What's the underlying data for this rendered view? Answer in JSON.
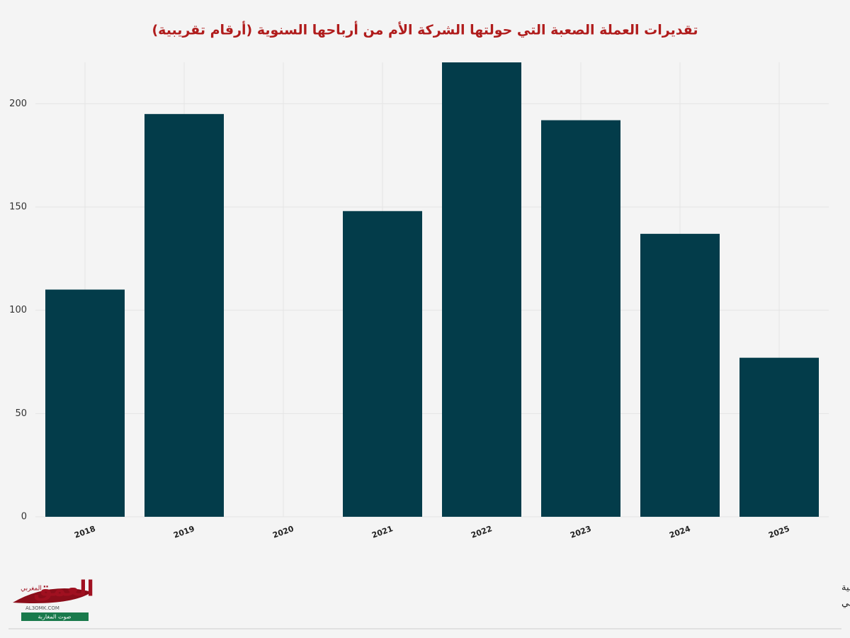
{
  "chart_data": {
    "type": "bar",
    "title": "تقديرات العملة الصعبة التي حولتها الشركة الأم من أرباحها السنوية (أرقام تقريبية)",
    "categories": [
      "2018",
      "2019",
      "2020",
      "2021",
      "2022",
      "2023",
      "2024",
      "2025"
    ],
    "values": [
      110,
      195,
      null,
      148,
      220,
      192,
      137,
      77
    ],
    "color": "#033c4a",
    "ylim": [
      0,
      220
    ],
    "yticks": [
      0,
      50,
      100,
      150,
      200
    ],
    "grid": true,
    "source": "مصدر الأرقام: مصادر مختلفة تم تجميعها بتقنيات الذكاء الاصطناعي واحتسابها بناء على عدة مؤشرات وتقارير دولية",
    "credit": "تجميع وترتيب: جريدة العمق المغربي"
  },
  "logo": {
    "name": "العمق",
    "subtitle": "المغربي",
    "site": "AL3OMK.COM",
    "tagline": "صوت المغاربة"
  }
}
